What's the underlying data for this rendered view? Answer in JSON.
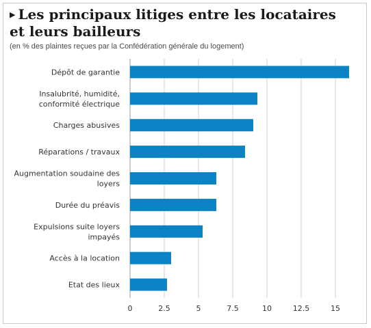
{
  "chart_data": {
    "type": "bar",
    "orientation": "horizontal",
    "title": "Les principaux litiges entre les locataires et leurs bailleurs",
    "subtitle": "(en % des plaintes reçues par la Confédération générale du logement)",
    "categories": [
      [
        "Dépôt de garantie"
      ],
      [
        "Insalubrité, humidité,",
        "conformité électrique"
      ],
      [
        "Charges abusives"
      ],
      [
        "Réparations / travaux"
      ],
      [
        "Augmentation soudaine des",
        "loyers"
      ],
      [
        "Durée du préavis"
      ],
      [
        "Expulsions suite loyers",
        "impayés"
      ],
      [
        "Accès à la location"
      ],
      [
        "Etat des lieux"
      ]
    ],
    "values": [
      16,
      9.3,
      9,
      8.4,
      6.3,
      6.3,
      5.3,
      3,
      2.7
    ],
    "xlim": [
      0,
      16
    ],
    "x_ticks": [
      "0",
      "2.5",
      "5",
      "7.5",
      "10",
      "12.5",
      "15"
    ],
    "grid": true,
    "bar_color": "#0a82c3",
    "grid_color": "#d0d0d0"
  }
}
